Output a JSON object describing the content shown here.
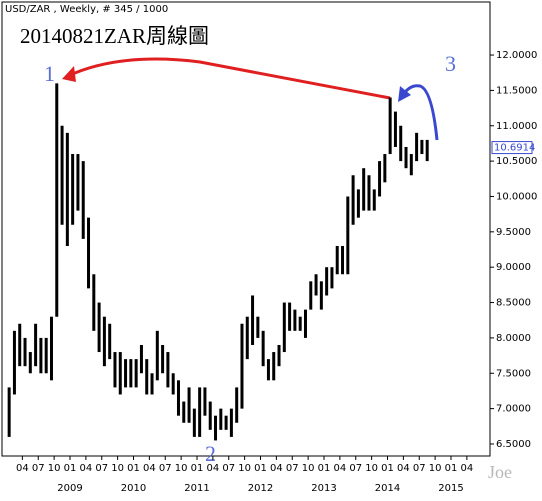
{
  "header": "USD/ZAR , Weekly, # 345 / 1000",
  "chart_data": {
    "type": "range",
    "title": "20140821ZAR周線圖",
    "x": [
      "2008-01",
      "2008-02",
      "2008-03",
      "2008-04",
      "2008-05",
      "2008-06",
      "2008-07",
      "2008-08",
      "2008-09",
      "2008-10",
      "2008-11",
      "2008-12",
      "2009-01",
      "2009-02",
      "2009-03",
      "2009-04",
      "2009-05",
      "2009-06",
      "2009-07",
      "2009-08",
      "2009-09",
      "2009-10",
      "2009-11",
      "2009-12",
      "2010-01",
      "2010-02",
      "2010-03",
      "2010-04",
      "2010-05",
      "2010-06",
      "2010-07",
      "2010-08",
      "2010-09",
      "2010-10",
      "2010-11",
      "2010-12",
      "2011-01",
      "2011-02",
      "2011-03",
      "2011-04",
      "2011-05",
      "2011-06",
      "2011-07",
      "2011-08",
      "2011-09",
      "2011-10",
      "2011-11",
      "2011-12",
      "2012-01",
      "2012-02",
      "2012-03",
      "2012-04",
      "2012-05",
      "2012-06",
      "2012-07",
      "2012-08",
      "2012-09",
      "2012-10",
      "2012-11",
      "2012-12",
      "2013-01",
      "2013-02",
      "2013-03",
      "2013-04",
      "2013-05",
      "2013-06",
      "2013-07",
      "2013-08",
      "2013-09",
      "2013-10",
      "2013-11",
      "2013-12",
      "2014-01",
      "2014-02",
      "2014-03",
      "2014-04",
      "2014-05",
      "2014-06",
      "2014-07",
      "2014-08"
    ],
    "high": [
      7.3,
      8.1,
      8.2,
      8.0,
      7.8,
      8.2,
      8.0,
      8.0,
      8.3,
      11.6,
      11.0,
      10.9,
      10.6,
      10.6,
      10.5,
      9.7,
      8.9,
      8.5,
      8.3,
      8.2,
      7.8,
      7.8,
      7.7,
      7.7,
      7.7,
      7.9,
      7.7,
      7.5,
      8.1,
      7.9,
      7.8,
      7.5,
      7.4,
      7.1,
      7.3,
      7.0,
      7.3,
      7.3,
      7.1,
      6.9,
      7.0,
      6.9,
      7.0,
      7.3,
      8.2,
      8.3,
      8.6,
      8.3,
      8.1,
      7.7,
      7.8,
      7.9,
      8.5,
      8.5,
      8.4,
      8.3,
      8.4,
      8.8,
      8.9,
      8.8,
      9.0,
      9.0,
      9.3,
      9.3,
      10.0,
      10.3,
      10.1,
      10.4,
      10.3,
      10.1,
      10.5,
      10.6,
      11.4,
      11.2,
      11.0,
      10.7,
      10.6,
      10.9,
      10.8,
      10.8
    ],
    "low": [
      6.6,
      7.2,
      7.6,
      7.6,
      7.5,
      7.6,
      7.5,
      7.5,
      7.4,
      8.3,
      9.6,
      9.3,
      9.6,
      9.8,
      9.4,
      8.7,
      8.1,
      7.8,
      7.6,
      7.7,
      7.3,
      7.2,
      7.3,
      7.3,
      7.3,
      7.5,
      7.2,
      7.2,
      7.4,
      7.5,
      7.3,
      7.2,
      6.9,
      6.8,
      6.8,
      6.6,
      6.6,
      6.9,
      6.7,
      6.55,
      6.7,
      6.7,
      6.6,
      6.8,
      7.0,
      7.7,
      7.9,
      8.0,
      7.6,
      7.4,
      7.4,
      7.6,
      7.8,
      8.1,
      8.1,
      8.1,
      8.0,
      8.4,
      8.6,
      8.4,
      8.6,
      8.7,
      8.9,
      8.9,
      8.9,
      9.6,
      9.7,
      9.8,
      9.8,
      9.8,
      10.0,
      10.2,
      10.6,
      10.7,
      10.5,
      10.4,
      10.3,
      10.5,
      10.6,
      10.5
    ],
    "color": "#000000",
    "last": 10.6914,
    "ylim": [
      6.33,
      12.75
    ],
    "yticks": [
      {
        "value": 6.5,
        "label": "6.5000"
      },
      {
        "value": 7,
        "label": "7.0000"
      },
      {
        "value": 7.5,
        "label": "7.5000"
      },
      {
        "value": 8,
        "label": "8.0000"
      },
      {
        "value": 8.5,
        "label": "8.5000"
      },
      {
        "value": 9,
        "label": "9.0000"
      },
      {
        "value": 9.5,
        "label": "9.5000"
      },
      {
        "value": 10,
        "label": "10.0000"
      },
      {
        "value": 10.5,
        "label": "10.5000"
      },
      {
        "value": 11,
        "label": "11.0000"
      },
      {
        "value": 11.5,
        "label": "11.5000"
      },
      {
        "value": 12,
        "label": "12.0000"
      }
    ],
    "xticks": [
      {
        "value": "2008-04",
        "label": "04"
      },
      {
        "value": "2008-07",
        "label": "07"
      },
      {
        "value": "2008-10",
        "label": "10"
      },
      {
        "value": "2009-01",
        "label": "01"
      },
      {
        "value": "2009-04",
        "label": "04"
      },
      {
        "value": "2009-07",
        "label": "07"
      },
      {
        "value": "2009-10",
        "label": "10"
      },
      {
        "value": "2010-01",
        "label": "01"
      },
      {
        "value": "2010-04",
        "label": "04"
      },
      {
        "value": "2010-07",
        "label": "07"
      },
      {
        "value": "2010-10",
        "label": "10"
      },
      {
        "value": "2011-01",
        "label": "01"
      },
      {
        "value": "2011-04",
        "label": "04"
      },
      {
        "value": "2011-07",
        "label": "07"
      },
      {
        "value": "2011-10",
        "label": "10"
      },
      {
        "value": "2012-01",
        "label": "01"
      },
      {
        "value": "2012-04",
        "label": "04"
      },
      {
        "value": "2012-07",
        "label": "07"
      },
      {
        "value": "2012-10",
        "label": "10"
      },
      {
        "value": "2013-01",
        "label": "01"
      },
      {
        "value": "2013-04",
        "label": "04"
      },
      {
        "value": "2013-07",
        "label": "07"
      },
      {
        "value": "2013-10",
        "label": "10"
      },
      {
        "value": "2014-01",
        "label": "01"
      },
      {
        "value": "2014-04",
        "label": "04"
      },
      {
        "value": "2014-07",
        "label": "07"
      },
      {
        "value": "2014-10",
        "label": "10"
      },
      {
        "value": "2015-01",
        "label": "01"
      },
      {
        "value": "2015-04",
        "label": "04"
      }
    ],
    "year_labels": [
      {
        "value": "2009-01",
        "label": "2009"
      },
      {
        "value": "2010-01",
        "label": "2010"
      },
      {
        "value": "2011-01",
        "label": "2011"
      },
      {
        "value": "2012-01",
        "label": "2012"
      },
      {
        "value": "2013-01",
        "label": "2013"
      },
      {
        "value": "2014-01",
        "label": "2014"
      },
      {
        "value": "2015-01",
        "label": "2015"
      }
    ],
    "annotations": [
      "1",
      "2",
      "3"
    ],
    "watermark": "Joe"
  }
}
